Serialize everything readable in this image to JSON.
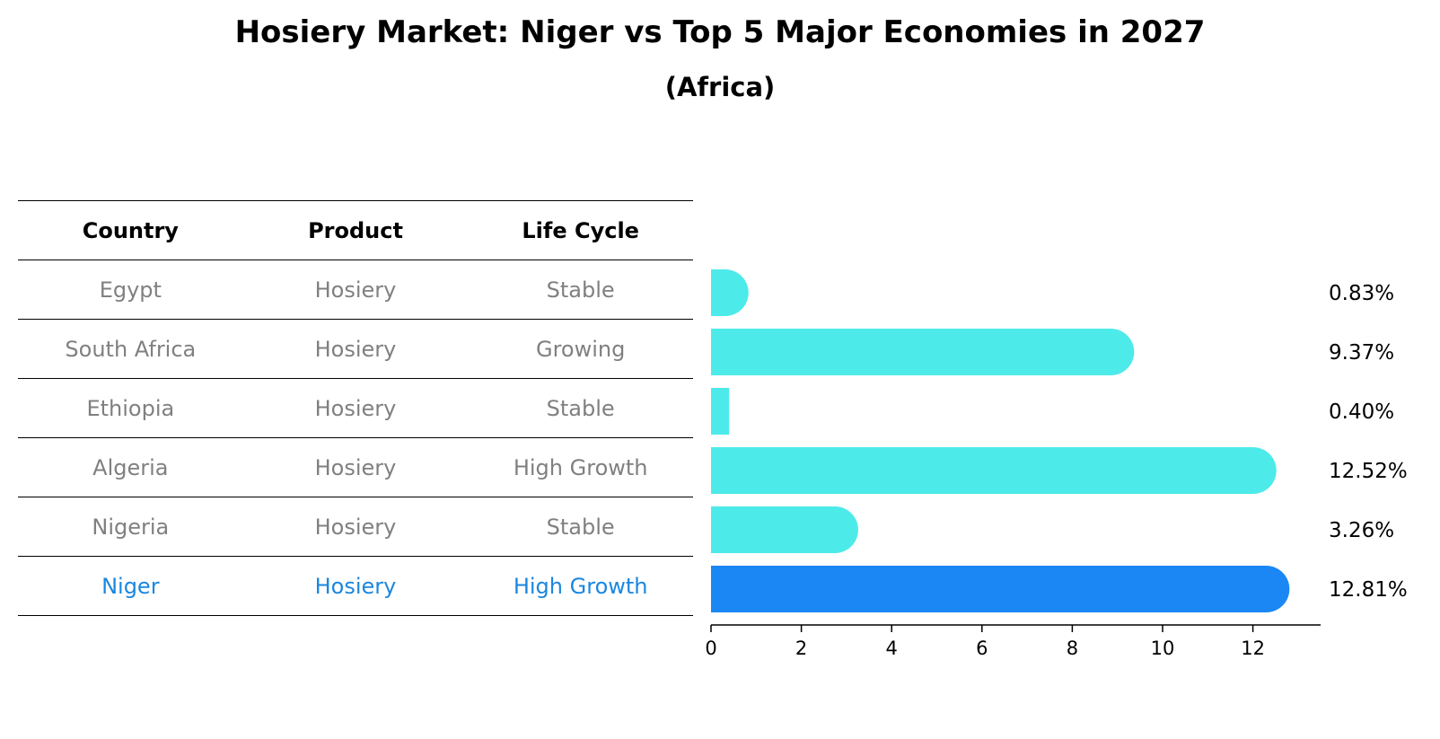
{
  "title": "Hosiery Market: Niger vs Top 5 Major Economies in 2027",
  "subtitle": "(Africa)",
  "table": {
    "headers": [
      "Country",
      "Product",
      "Life Cycle"
    ],
    "rows": [
      {
        "country": "Egypt",
        "product": "Hosiery",
        "life_cycle": "Stable"
      },
      {
        "country": "South Africa",
        "product": "Hosiery",
        "life_cycle": "Growing"
      },
      {
        "country": "Ethiopia",
        "product": "Hosiery",
        "life_cycle": "Stable"
      },
      {
        "country": "Algeria",
        "product": "Hosiery",
        "life_cycle": "High Growth"
      },
      {
        "country": "Nigeria",
        "product": "Hosiery",
        "life_cycle": "Stable"
      },
      {
        "country": "Niger",
        "product": "Hosiery",
        "life_cycle": "High Growth"
      }
    ]
  },
  "colors": {
    "bar": "#4deaea",
    "highlight": "#1a87f5",
    "highlight_text": "#1a87e0",
    "muted_text": "#808080"
  },
  "chart_data": {
    "type": "bar",
    "orientation": "horizontal",
    "categories": [
      "Egypt",
      "South Africa",
      "Ethiopia",
      "Algeria",
      "Nigeria",
      "Niger"
    ],
    "values": [
      0.83,
      9.37,
      0.4,
      12.52,
      3.26,
      12.81
    ],
    "value_labels": [
      "0.83%",
      "9.37%",
      "0.40%",
      "12.52%",
      "3.26%",
      "12.81%"
    ],
    "highlight": "Niger",
    "xlim": [
      0,
      13.5
    ],
    "xticks": [
      0,
      2,
      4,
      6,
      8,
      10,
      12
    ],
    "xlabel": "",
    "ylabel": ""
  }
}
